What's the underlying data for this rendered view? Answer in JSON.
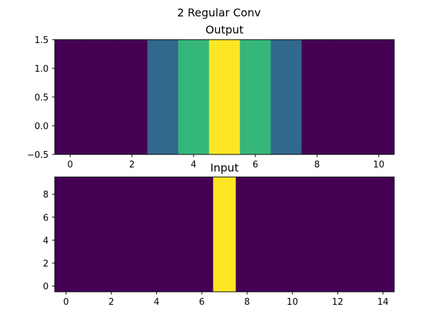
{
  "figure": {
    "suptitle": "2 Regular Conv"
  },
  "colormap": {
    "name": "viridis",
    "levels": {
      "0": "#440154",
      "1": "#31688e",
      "2": "#35b779",
      "3": "#fde725"
    }
  },
  "chart_data": [
    {
      "type": "heatmap",
      "title": "Output",
      "xlabel": "",
      "ylabel": "",
      "xlim": [
        -0.5,
        10.5
      ],
      "ylim": [
        -0.5,
        1.5
      ],
      "xticks": [
        0,
        2,
        4,
        6,
        8,
        10
      ],
      "yticks": [
        -0.5,
        0.0,
        0.5,
        1.0,
        1.5
      ],
      "xtick_labels": [
        "0",
        "2",
        "4",
        "6",
        "8",
        "10"
      ],
      "ytick_labels": [
        "−0.5",
        "0.0",
        "0.5",
        "1.0",
        "1.5"
      ],
      "columns": [
        0,
        1,
        2,
        3,
        4,
        5,
        6,
        7,
        8,
        9,
        10
      ],
      "values": [
        0,
        0,
        0,
        1,
        2,
        3,
        2,
        1,
        0,
        0,
        0
      ],
      "value_colors": [
        "#440154",
        "#440154",
        "#440154",
        "#31688e",
        "#35b779",
        "#fde725",
        "#35b779",
        "#31688e",
        "#440154",
        "#440154",
        "#440154"
      ]
    },
    {
      "type": "heatmap",
      "title": "Input",
      "xlabel": "",
      "ylabel": "",
      "xlim": [
        -0.5,
        14.5
      ],
      "ylim": [
        -0.5,
        9.5
      ],
      "xticks": [
        0,
        2,
        4,
        6,
        8,
        10,
        12,
        14
      ],
      "yticks": [
        0,
        2,
        4,
        6,
        8
      ],
      "xtick_labels": [
        "0",
        "2",
        "4",
        "6",
        "8",
        "10",
        "12",
        "14"
      ],
      "ytick_labels": [
        "0",
        "2",
        "4",
        "6",
        "8"
      ],
      "columns": [
        0,
        1,
        2,
        3,
        4,
        5,
        6,
        7,
        8,
        9,
        10,
        11,
        12,
        13,
        14
      ],
      "values": [
        0,
        0,
        0,
        0,
        0,
        0,
        0,
        1,
        0,
        0,
        0,
        0,
        0,
        0,
        0
      ],
      "value_colors": [
        "#440154",
        "#440154",
        "#440154",
        "#440154",
        "#440154",
        "#440154",
        "#440154",
        "#fde725",
        "#440154",
        "#440154",
        "#440154",
        "#440154",
        "#440154",
        "#440154",
        "#440154"
      ]
    }
  ]
}
